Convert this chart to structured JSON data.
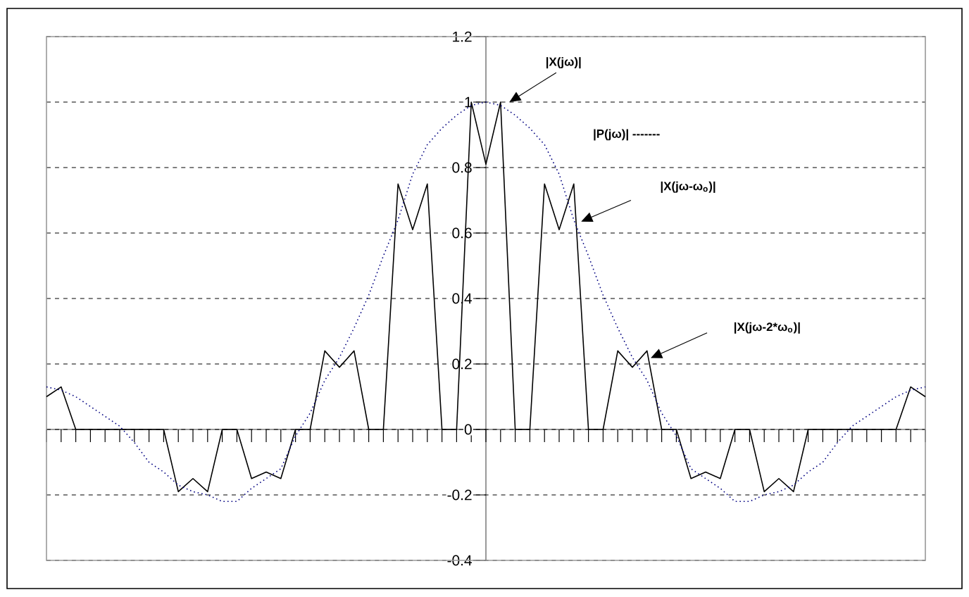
{
  "chart_data": {
    "type": "line",
    "categories": [
      null,
      null,
      null,
      null,
      null,
      null,
      null,
      null,
      null,
      null,
      null,
      null,
      null,
      null,
      null,
      null,
      null,
      null,
      null,
      null,
      null,
      null,
      null,
      null,
      null,
      null,
      null,
      null,
      null,
      null,
      null,
      null,
      null,
      null,
      null,
      null,
      null,
      null,
      null,
      null,
      null,
      null,
      null,
      null,
      null,
      null,
      null,
      null,
      null,
      null,
      null,
      null,
      null,
      null,
      null,
      null,
      null,
      null,
      null,
      null,
      null
    ],
    "series": [
      {
        "color": "#000000",
        "line_style": "solid",
        "values": [
          0.1,
          0.13,
          0,
          0,
          0,
          0,
          0,
          0,
          0,
          -0.19,
          -0.15,
          -0.19,
          0,
          0,
          -0.15,
          -0.13,
          -0.15,
          0,
          0,
          0.24,
          0.19,
          0.24,
          0,
          0,
          0.75,
          0.61,
          0.75,
          0,
          0,
          1,
          0.81,
          1,
          0,
          0,
          0.75,
          0.61,
          0.75,
          0,
          0,
          0.24,
          0.19,
          0.24,
          0,
          0,
          -0.15,
          -0.13,
          -0.15,
          0,
          0,
          -0.19,
          -0.15,
          -0.19,
          0,
          0,
          0,
          0,
          0,
          0,
          0,
          0.13,
          0.1
        ]
      },
      {
        "color": "#000080",
        "line_style": "dotted",
        "values": [
          0.13,
          0.12,
          0.1,
          0.07,
          0.04,
          0.01,
          -0.04,
          -0.1,
          -0.13,
          -0.17,
          -0.19,
          -0.2,
          -0.22,
          -0.22,
          -0.18,
          -0.15,
          -0.12,
          -0.02,
          0.05,
          0.15,
          0.22,
          0.31,
          0.41,
          0.53,
          0.64,
          0.78,
          0.87,
          0.92,
          0.96,
          0.99,
          1,
          0.99,
          0.96,
          0.92,
          0.87,
          0.78,
          0.64,
          0.53,
          0.41,
          0.31,
          0.22,
          0.15,
          0.05,
          -0.02,
          -0.12,
          -0.15,
          -0.18,
          -0.22,
          -0.22,
          -0.2,
          -0.19,
          -0.17,
          -0.13,
          -0.1,
          -0.04,
          0.01,
          0.04,
          0.07,
          0.1,
          0.12,
          0.13
        ]
      }
    ],
    "ylim": [
      -0.4,
      1.2
    ],
    "yticks": [
      -0.4,
      -0.2,
      0,
      0.2,
      0.4,
      0.6,
      0.8,
      1,
      1.2
    ],
    "grid": "y",
    "tick_labels": "y",
    "annotations": [
      "|X(jω)|",
      "|P(jω)| -------",
      "|X(jω-ω$_{o}$)|",
      "|X(jω-2*ω$_{o}$)|"
    ]
  }
}
